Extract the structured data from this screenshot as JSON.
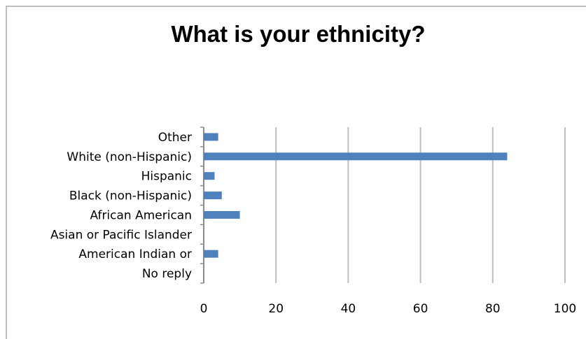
{
  "chart_data": {
    "type": "bar",
    "orientation": "horizontal",
    "title": "What is your ethnicity?",
    "categories": [
      "Other",
      "White (non-Hispanic)",
      "Hispanic",
      "Black (non-Hispanic)",
      "African American",
      "Asian or Pacific Islander",
      "American Indian or",
      "No reply"
    ],
    "values": [
      4,
      84,
      3,
      5,
      10,
      0,
      4,
      0
    ],
    "xlim": [
      0,
      100
    ],
    "xticks": [
      0,
      20,
      40,
      60,
      80,
      100
    ],
    "xlabel": "",
    "ylabel": "",
    "grid": "vertical",
    "legend": "none",
    "bar_color": "#4f81bd",
    "gridline_color": "#bfbfbf"
  }
}
